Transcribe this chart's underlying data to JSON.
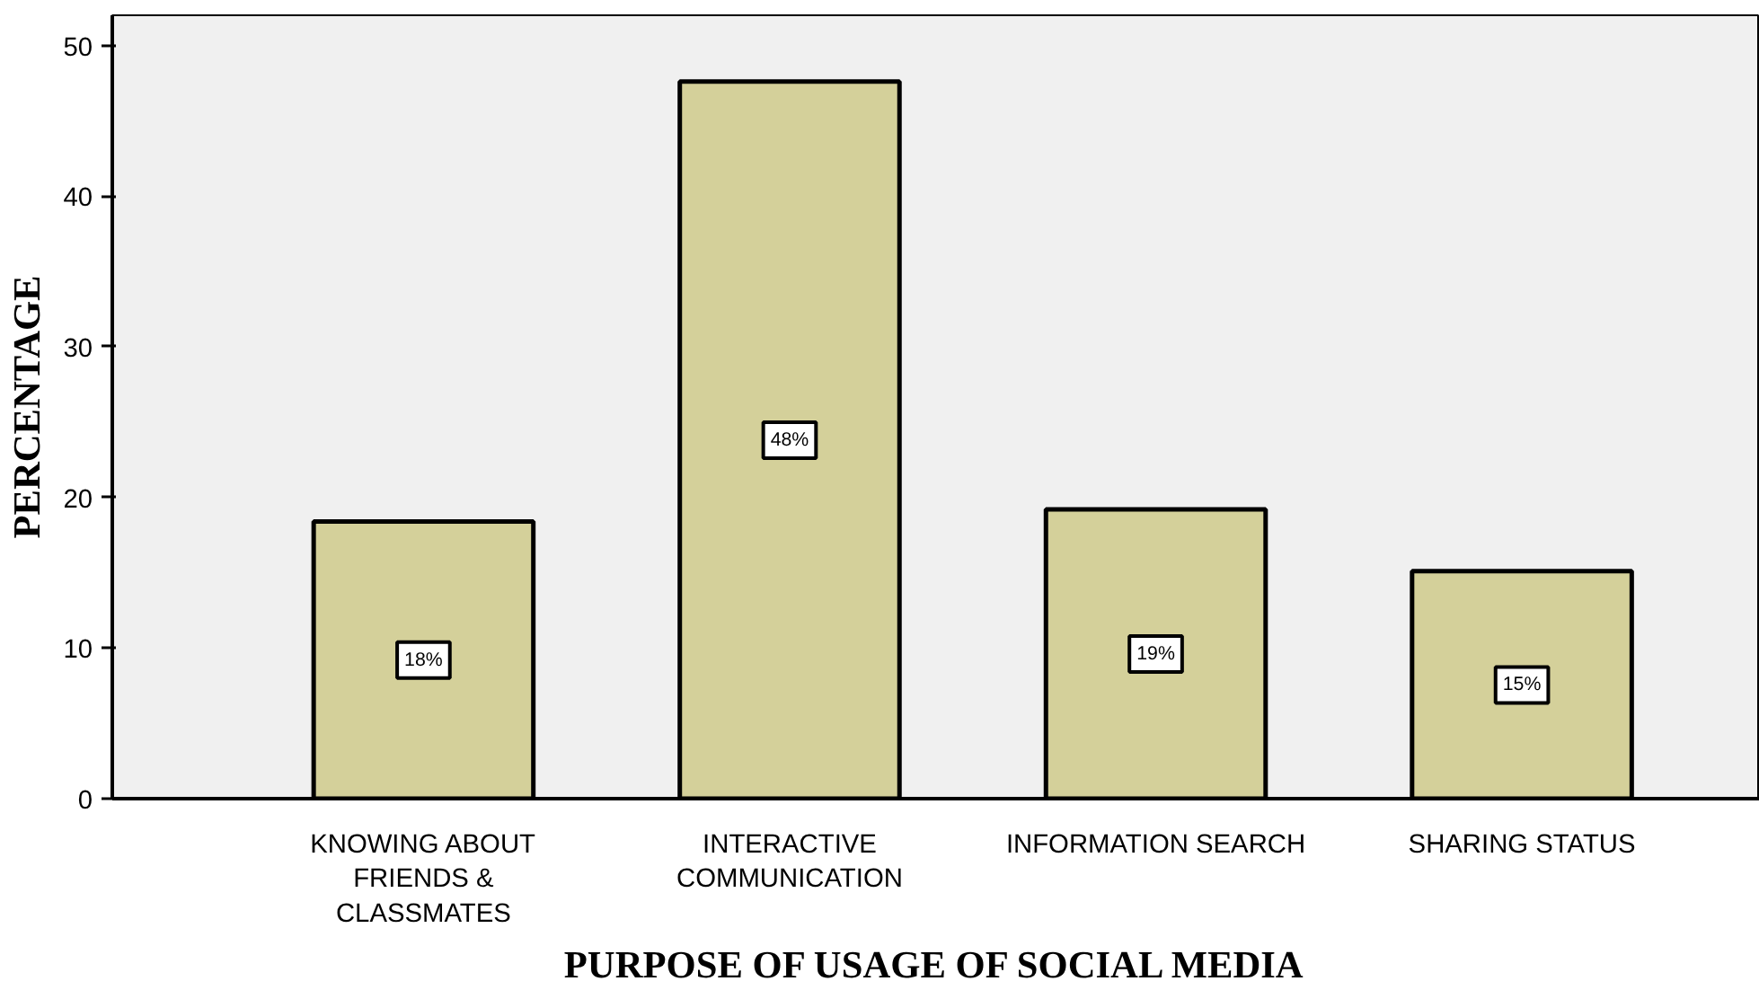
{
  "chart_data": {
    "type": "bar",
    "xlabel": "PURPOSE OF USAGE OF SOCIAL MEDIA",
    "ylabel": "PERCENTAGE",
    "categories": [
      "KNOWING ABOUT\nFRIENDS &\nCLASSMATES",
      "INTERACTIVE\nCOMMUNICATION",
      "INFORMATION SEARCH",
      "SHARING STATUS"
    ],
    "values": [
      18.4,
      47.6,
      19.2,
      15.1
    ],
    "value_labels": [
      "18%",
      "48%",
      "19%",
      "15%"
    ],
    "color": "#d4d09a",
    "ylim": [
      0,
      52
    ],
    "yticks": [
      0,
      10,
      20,
      30,
      40,
      50
    ],
    "grid": false
  }
}
